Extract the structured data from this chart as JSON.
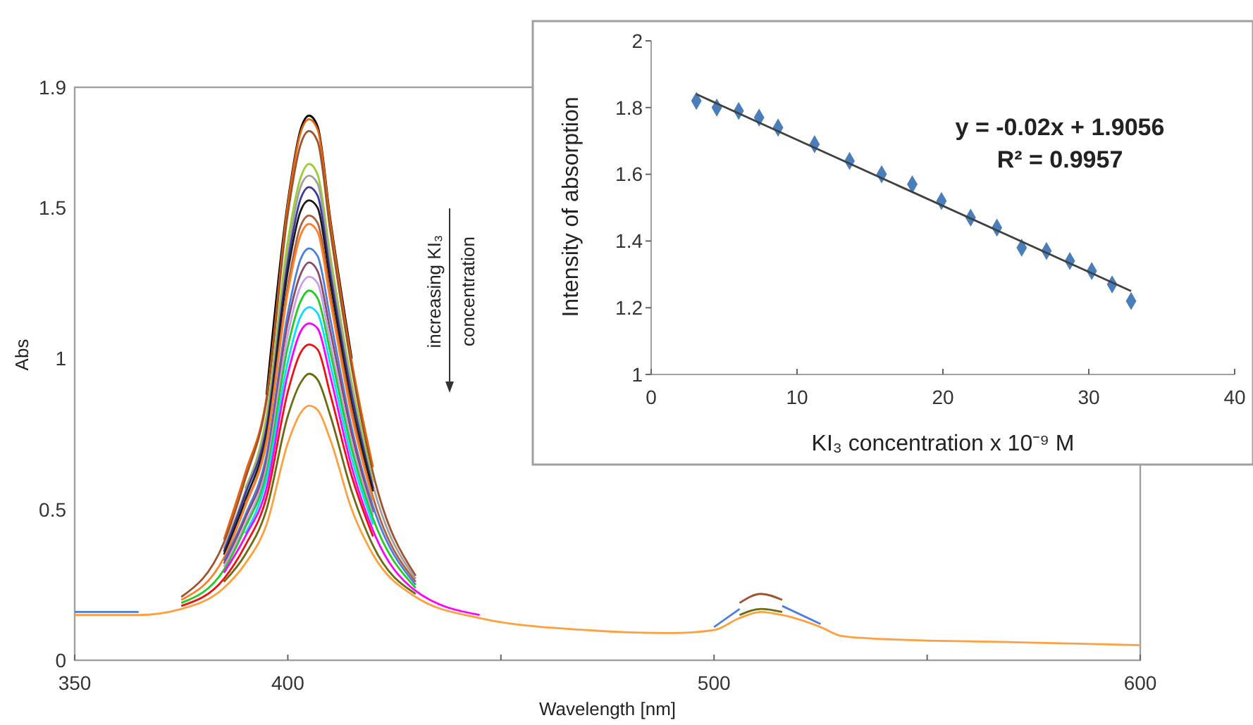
{
  "chart_data": [
    {
      "type": "line",
      "xlabel": "Wavelength [nm]",
      "ylabel": "Abs",
      "xlim": [
        350,
        600
      ],
      "ylim": [
        0,
        1.9
      ],
      "xticks": [
        350,
        400,
        {
          "value": 450,
          "label": null
        },
        500,
        {
          "value": 550,
          "label": null
        },
        600
      ],
      "yticks": [
        0,
        0.5,
        1,
        1.5,
        1.9
      ],
      "annotations": [
        "increasing KI₃",
        "concentration"
      ],
      "x": [
        350,
        365,
        375,
        385,
        390,
        395,
        400,
        403,
        405,
        407,
        410,
        415,
        420,
        430,
        445,
        470,
        490,
        500,
        506,
        511,
        516,
        525,
        530,
        540,
        570,
        600
      ],
      "series": [
        {
          "color": "#000000",
          "values": [
            null,
            null,
            null,
            null,
            null,
            0.88,
            1.52,
            1.76,
            1.806,
            1.77,
            1.46,
            1.0,
            null,
            null,
            null,
            null,
            null,
            null,
            null,
            null,
            null,
            null,
            null,
            null,
            null,
            null
          ]
        },
        {
          "color": "#e8650a",
          "values": [
            null,
            null,
            null,
            0.4,
            0.62,
            0.87,
            1.51,
            1.75,
            1.794,
            1.76,
            1.45,
            0.99,
            0.64,
            null,
            null,
            null,
            null,
            null,
            null,
            null,
            null,
            null,
            null,
            null,
            null,
            null
          ]
        },
        {
          "color": "#a0522d",
          "values": [
            null,
            null,
            0.21,
            0.39,
            0.6,
            0.86,
            1.48,
            1.71,
            1.755,
            1.72,
            1.42,
            0.97,
            0.62,
            0.28,
            null,
            null,
            null,
            null,
            0.19,
            0.22,
            0.2,
            null,
            null,
            null,
            null,
            null
          ]
        },
        {
          "color": "#9acd32",
          "values": [
            null,
            null,
            null,
            null,
            0.57,
            0.81,
            1.39,
            1.6,
            1.646,
            1.61,
            1.34,
            0.92,
            0.59,
            null,
            null,
            null,
            null,
            null,
            null,
            null,
            null,
            null,
            null,
            null,
            null,
            null
          ]
        },
        {
          "color": "#a0a0a0",
          "values": [
            null,
            null,
            null,
            0.37,
            0.56,
            0.79,
            1.35,
            1.57,
            1.607,
            1.58,
            1.31,
            0.9,
            0.58,
            0.27,
            null,
            null,
            null,
            null,
            null,
            null,
            null,
            null,
            null,
            null,
            null,
            null
          ]
        },
        {
          "color": "#3a3a9a",
          "values": [
            null,
            null,
            null,
            0.36,
            0.55,
            0.77,
            1.32,
            1.53,
            1.569,
            1.54,
            1.28,
            0.88,
            0.57,
            null,
            null,
            null,
            null,
            null,
            null,
            null,
            null,
            null,
            null,
            null,
            null,
            null
          ]
        },
        {
          "color": "#1a1a1a",
          "values": [
            null,
            null,
            null,
            0.35,
            0.53,
            0.75,
            1.29,
            1.49,
            1.525,
            1.5,
            1.25,
            0.85,
            0.56,
            null,
            null,
            null,
            null,
            null,
            null,
            null,
            null,
            null,
            null,
            null,
            null,
            null
          ]
        },
        {
          "color": "#b06040",
          "values": [
            null,
            null,
            null,
            null,
            0.52,
            0.73,
            1.24,
            1.44,
            1.475,
            1.45,
            1.21,
            0.83,
            0.54,
            0.26,
            null,
            null,
            null,
            null,
            null,
            null,
            null,
            null,
            null,
            null,
            null,
            null
          ]
        },
        {
          "color": "#ff7f27",
          "values": [
            null,
            null,
            0.2,
            0.34,
            0.51,
            0.72,
            1.22,
            1.41,
            1.447,
            1.42,
            1.19,
            0.81,
            0.53,
            null,
            null,
            null,
            null,
            null,
            null,
            null,
            null,
            null,
            null,
            null,
            null,
            null
          ]
        },
        {
          "color": "#4a7fe0",
          "values": [
            0.16,
            0.16,
            null,
            0.33,
            0.48,
            0.68,
            1.15,
            1.33,
            1.366,
            1.34,
            1.13,
            0.77,
            0.51,
            0.25,
            null,
            null,
            null,
            0.11,
            0.17,
            null,
            0.18,
            0.12,
            null,
            null,
            null,
            null
          ]
        },
        {
          "color": "#8b4a6b",
          "values": [
            null,
            null,
            null,
            0.32,
            0.47,
            0.66,
            1.12,
            1.28,
            1.319,
            1.29,
            1.09,
            0.75,
            0.49,
            null,
            null,
            null,
            null,
            null,
            null,
            null,
            null,
            null,
            null,
            null,
            null,
            null
          ]
        },
        {
          "color": "#c89ee8",
          "values": [
            null,
            null,
            null,
            0.31,
            0.45,
            0.64,
            1.08,
            1.24,
            1.272,
            1.25,
            1.05,
            0.72,
            0.48,
            null,
            null,
            null,
            null,
            null,
            null,
            null,
            null,
            null,
            null,
            null,
            null,
            null
          ]
        },
        {
          "color": "#22cc22",
          "values": [
            null,
            null,
            0.19,
            0.3,
            0.44,
            0.62,
            1.04,
            1.19,
            1.226,
            1.2,
            1.02,
            0.7,
            0.47,
            0.24,
            null,
            null,
            null,
            null,
            null,
            null,
            null,
            null,
            null,
            null,
            null,
            null
          ]
        },
        {
          "color": "#00e0ff",
          "values": [
            null,
            null,
            null,
            null,
            0.42,
            0.6,
            0.99,
            1.14,
            1.171,
            1.15,
            0.98,
            0.67,
            0.45,
            null,
            null,
            null,
            null,
            null,
            null,
            null,
            null,
            null,
            null,
            null,
            null,
            null
          ]
        },
        {
          "color": "#ff00ff",
          "values": [
            null,
            null,
            null,
            0.29,
            0.41,
            0.57,
            0.95,
            1.09,
            1.117,
            1.1,
            0.94,
            0.64,
            0.43,
            0.23,
            0.15,
            null,
            null,
            null,
            null,
            null,
            null,
            null,
            null,
            null,
            null,
            null
          ]
        },
        {
          "color": "#ee1111",
          "values": [
            null,
            null,
            0.18,
            0.27,
            0.38,
            0.54,
            0.89,
            1.02,
            1.047,
            1.03,
            0.88,
            0.61,
            0.41,
            null,
            null,
            null,
            null,
            null,
            null,
            null,
            null,
            null,
            null,
            null,
            null,
            null
          ]
        },
        {
          "color": "#6b6b10",
          "values": [
            null,
            null,
            null,
            0.26,
            0.35,
            0.5,
            0.81,
            0.92,
            0.95,
            0.93,
            0.81,
            0.56,
            0.38,
            0.22,
            null,
            null,
            null,
            null,
            0.15,
            0.17,
            0.16,
            null,
            null,
            null,
            null,
            null
          ]
        },
        {
          "color": "#ffa040",
          "values": [
            0.15,
            0.15,
            0.17,
            0.24,
            0.32,
            0.45,
            0.72,
            0.82,
            0.844,
            0.83,
            0.73,
            0.5,
            0.35,
            0.21,
            0.14,
            0.1,
            0.09,
            0.1,
            0.14,
            0.16,
            0.15,
            0.11,
            0.08,
            0.07,
            0.06,
            0.05
          ]
        }
      ]
    },
    {
      "type": "scatter",
      "xlabel": "KI₃ concentration x 10⁻⁹ M",
      "ylabel": "Intensity of absorption",
      "xlim": [
        0,
        40
      ],
      "ylim": [
        1,
        2
      ],
      "xticks": [
        0,
        10,
        20,
        30,
        40
      ],
      "yticks": [
        1,
        1.2,
        1.4,
        1.6,
        1.8,
        2
      ],
      "annotations": [
        "y = -0.02x + 1.9056",
        "R² = 0.9957"
      ],
      "series": [
        {
          "color": "#4a7ebb",
          "marker": "diamond",
          "x": [
            3.1,
            4.5,
            6.0,
            7.4,
            8.7,
            11.2,
            13.6,
            15.8,
            17.9,
            19.9,
            21.9,
            23.7,
            25.4,
            27.1,
            28.7,
            30.2,
            31.6,
            32.9
          ],
          "values": [
            1.82,
            1.8,
            1.79,
            1.77,
            1.74,
            1.69,
            1.64,
            1.6,
            1.57,
            1.52,
            1.47,
            1.44,
            1.38,
            1.37,
            1.34,
            1.31,
            1.27,
            1.22
          ]
        },
        {
          "type": "line",
          "color": "#404040",
          "x": [
            3.1,
            32.9
          ],
          "values": [
            1.84,
            1.25
          ]
        }
      ]
    }
  ]
}
